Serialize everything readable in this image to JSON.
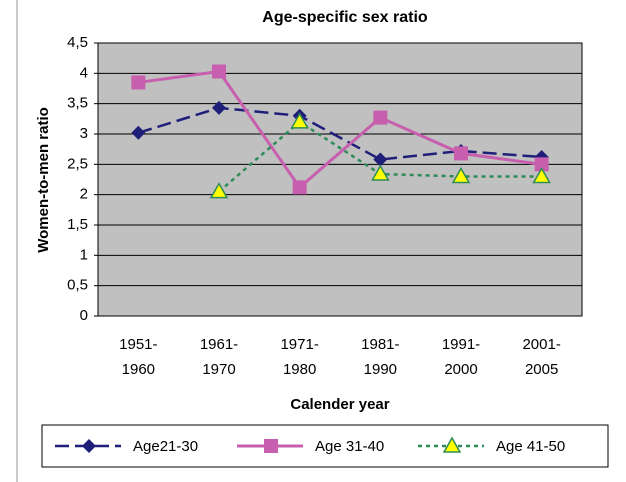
{
  "chart_data": {
    "type": "line",
    "title": "Age-specific sex ratio",
    "x_label": "Calender year",
    "y_label": "Women-to-men ratio",
    "categories": [
      "1951-1960",
      "1961-1970",
      "1971-1980",
      "1981-1990",
      "1991-2000",
      "2001-2005"
    ],
    "series": [
      {
        "name": "Age21-30",
        "color": "#1f1f7a",
        "values": [
          3.02,
          3.43,
          3.3,
          2.58,
          2.72,
          2.62
        ]
      },
      {
        "name": "Age 31-40",
        "color": "#c85fae",
        "values": [
          3.85,
          4.03,
          2.12,
          3.27,
          2.68,
          2.5
        ]
      },
      {
        "name": "Age 41-50",
        "color": "#2e8b57",
        "values": [
          null,
          2.05,
          3.2,
          2.34,
          2.3,
          2.3
        ]
      }
    ],
    "ylim": [
      0,
      4.5
    ],
    "yticks": [
      0,
      {
        "value": 0.5,
        "label": "0,5"
      },
      1,
      {
        "value": 1.5,
        "label": "1,5"
      },
      2,
      {
        "value": 2.5,
        "label": "2,5"
      },
      3,
      {
        "value": 3.5,
        "label": "3,5"
      },
      4,
      {
        "value": 4.5,
        "label": "4,5"
      }
    ],
    "grid": true,
    "legend": "bottom"
  }
}
